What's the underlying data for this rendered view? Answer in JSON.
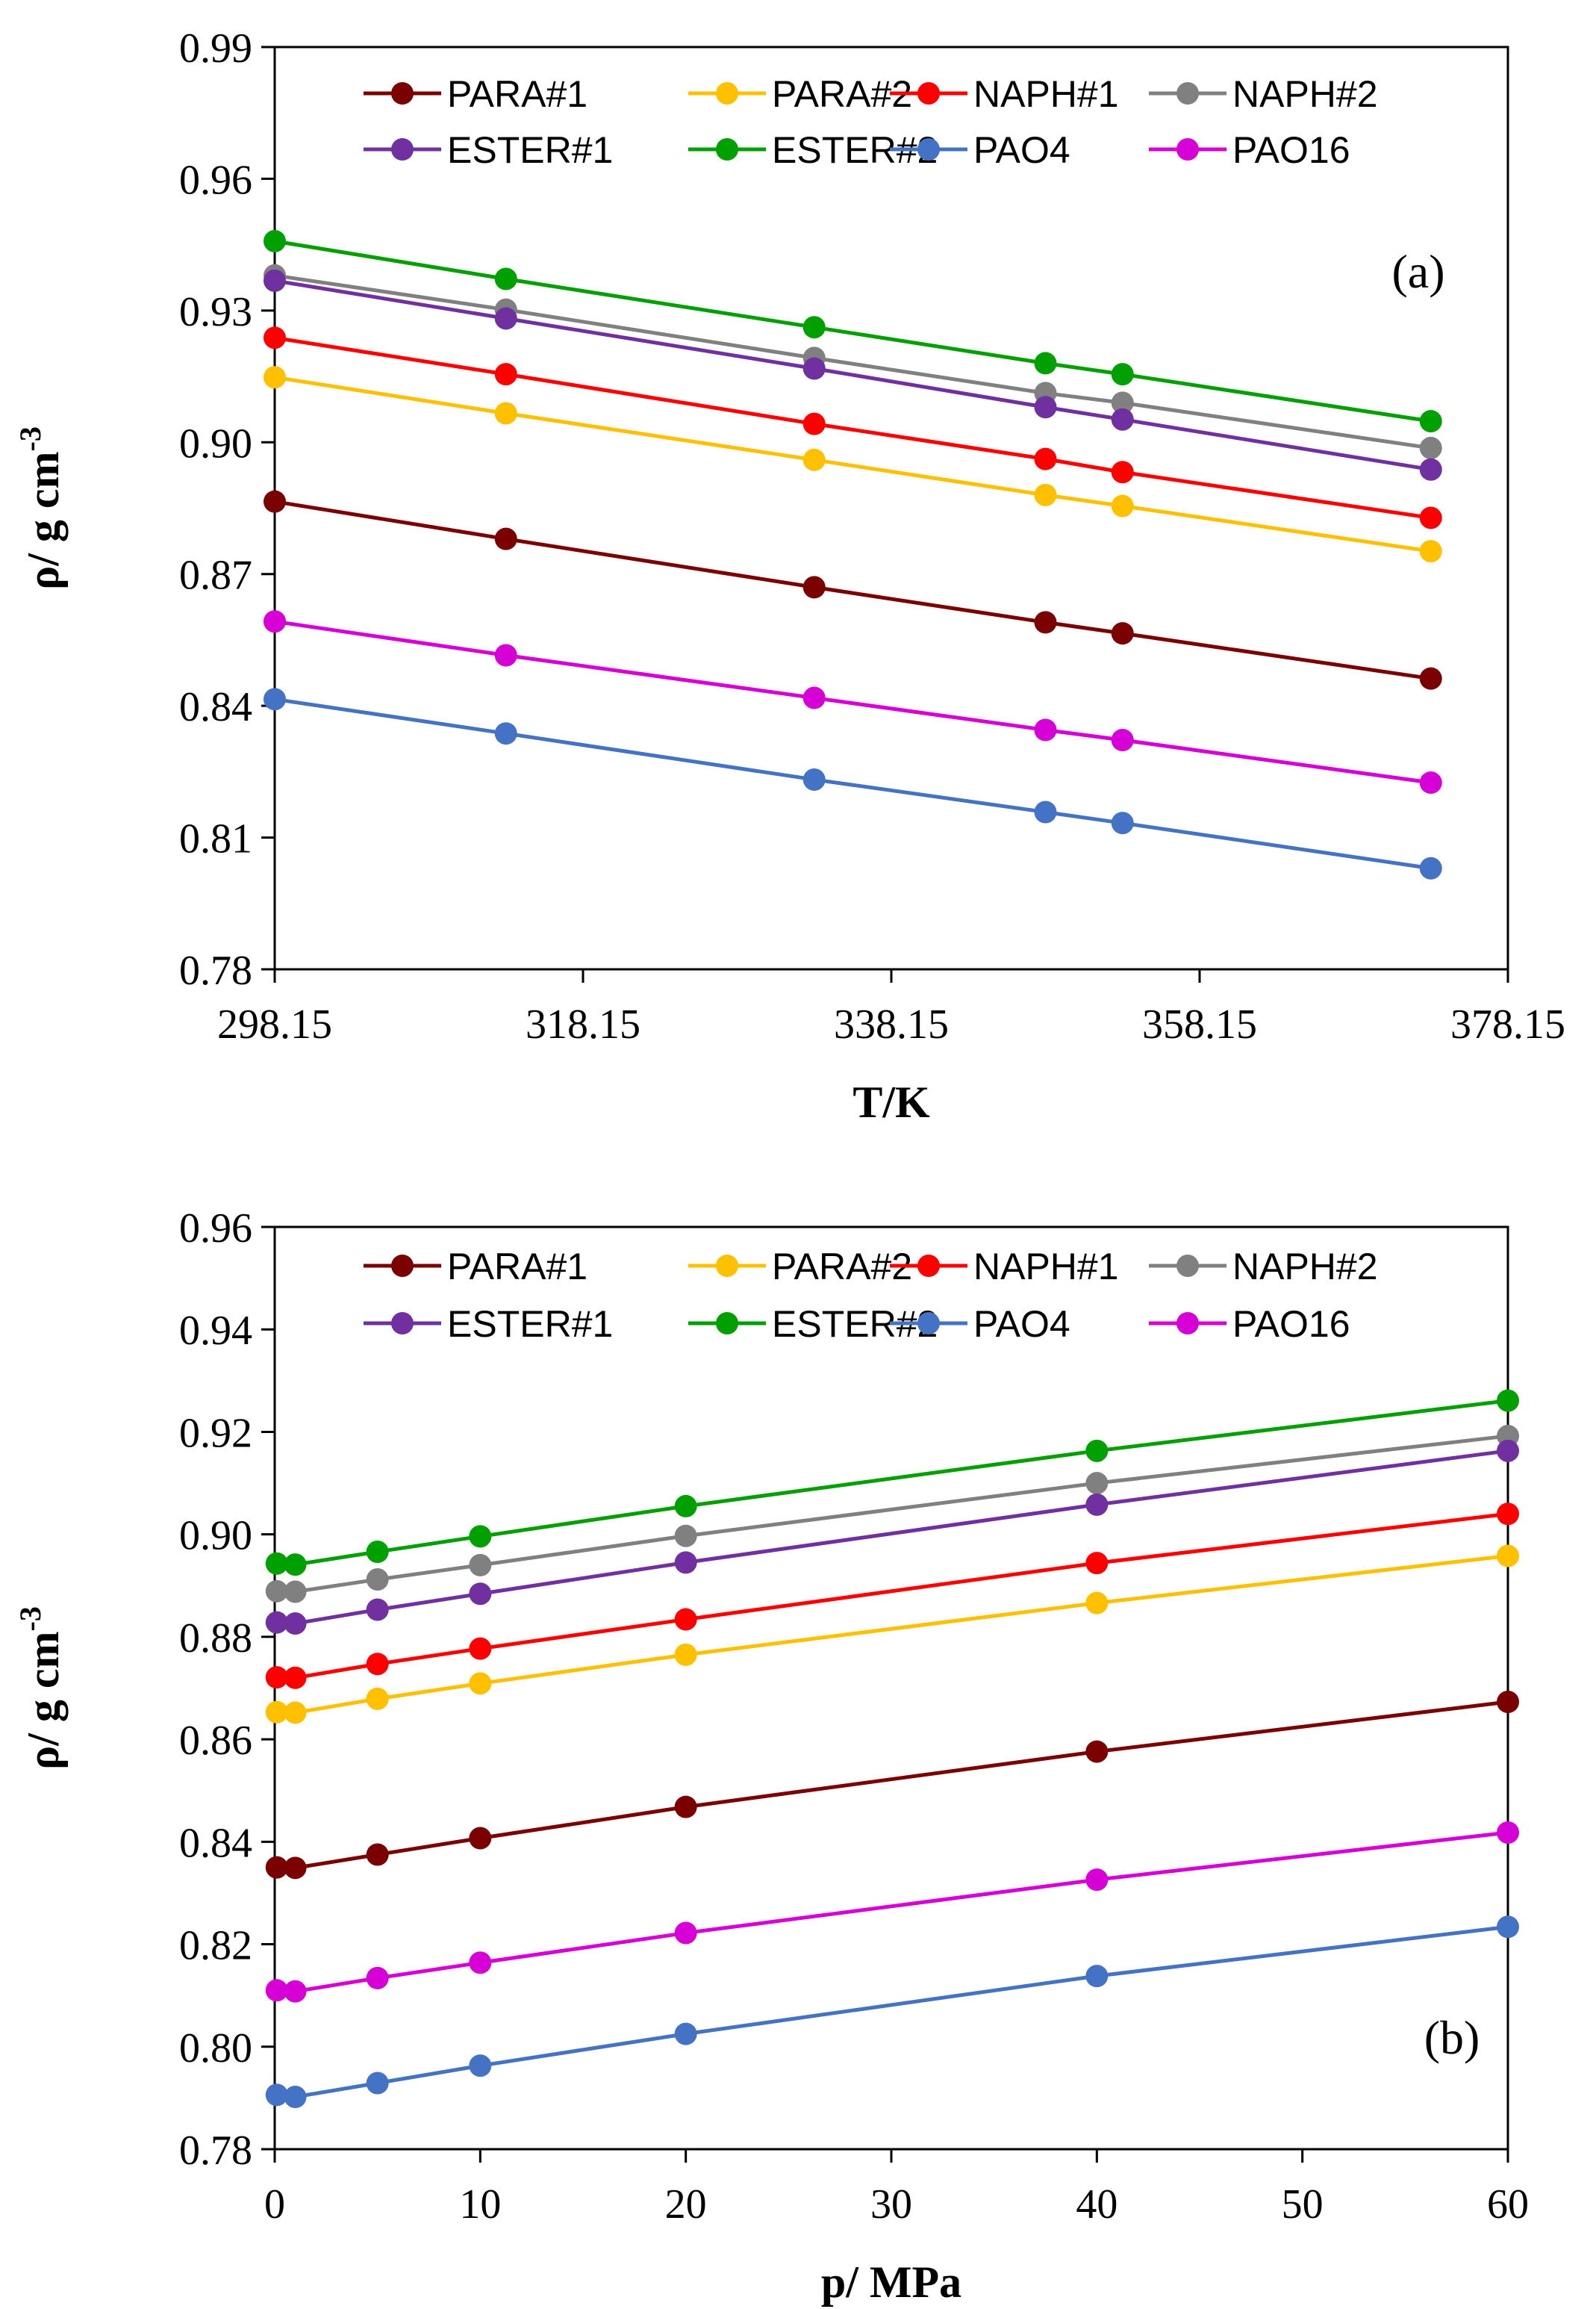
{
  "chart_data": [
    {
      "type": "line",
      "panel_label": "(a)",
      "xlabel": "T/K",
      "ylabel": "ρ/ g cm",
      "ylabel_superscript": "-3",
      "xlim": [
        298.15,
        378.15
      ],
      "ylim": [
        0.78,
        0.99
      ],
      "xticks": [
        298.15,
        318.15,
        338.15,
        358.15,
        378.15
      ],
      "xtick_labels": [
        "298.15",
        "318.15",
        "338.15",
        "358.15",
        "378.15"
      ],
      "yticks": [
        0.78,
        0.81,
        0.84,
        0.87,
        0.9,
        0.93,
        0.96,
        0.99
      ],
      "ytick_labels": [
        "0.78",
        "0.81",
        "0.84",
        "0.87",
        "0.90",
        "0.93",
        "0.96",
        "0.99"
      ],
      "grid": false,
      "legend_position": "top",
      "x": [
        298.15,
        313.15,
        333.15,
        348.15,
        353.15,
        373.15
      ],
      "series": [
        {
          "name": "PARA#1",
          "color": "#7B0000",
          "values": [
            0.8865,
            0.878,
            0.867,
            0.859,
            0.8565,
            0.8462
          ]
        },
        {
          "name": "PARA#2",
          "color": "#FFC000",
          "values": [
            0.9148,
            0.9066,
            0.896,
            0.888,
            0.8855,
            0.8752
          ]
        },
        {
          "name": "NAPH#1",
          "color": "#FF0000",
          "values": [
            0.9238,
            0.9155,
            0.9042,
            0.8962,
            0.8932,
            0.8828
          ]
        },
        {
          "name": "NAPH#2",
          "color": "#808080",
          "values": [
            0.938,
            0.9302,
            0.9192,
            0.9112,
            0.909,
            0.8987
          ]
        },
        {
          "name": "ESTER#1",
          "color": "#7030A0",
          "values": [
            0.9368,
            0.9282,
            0.9168,
            0.908,
            0.9052,
            0.8938
          ]
        },
        {
          "name": "ESTER#2",
          "color": "#00A000",
          "values": [
            0.9458,
            0.9372,
            0.9262,
            0.918,
            0.9155,
            0.9048
          ]
        },
        {
          "name": "PAO4",
          "color": "#4472C4",
          "values": [
            0.8415,
            0.8337,
            0.8232,
            0.8158,
            0.8133,
            0.803
          ]
        },
        {
          "name": "PAO16",
          "color": "#D600D6",
          "values": [
            0.8592,
            0.8515,
            0.8418,
            0.8345,
            0.8322,
            0.8225
          ]
        }
      ]
    },
    {
      "type": "line",
      "panel_label": "(b)",
      "xlabel": "p/ MPa",
      "ylabel": "ρ/ g cm",
      "ylabel_superscript": "-3",
      "xlim": [
        0,
        60
      ],
      "ylim": [
        0.78,
        0.96
      ],
      "xticks": [
        0,
        10,
        20,
        30,
        40,
        50,
        60
      ],
      "xtick_labels": [
        "0",
        "10",
        "20",
        "30",
        "40",
        "50",
        "60"
      ],
      "yticks": [
        0.78,
        0.8,
        0.82,
        0.84,
        0.86,
        0.88,
        0.9,
        0.92,
        0.94,
        0.96
      ],
      "ytick_labels": [
        "0.78",
        "0.80",
        "0.82",
        "0.84",
        "0.86",
        "0.88",
        "0.90",
        "0.92",
        "0.94",
        "0.96"
      ],
      "grid": false,
      "legend_position": "top",
      "x": [
        0.1,
        1,
        5,
        10,
        20,
        40,
        60
      ],
      "series": [
        {
          "name": "PARA#1",
          "color": "#7B0000",
          "values": [
            0.835,
            0.8349,
            0.8375,
            0.8407,
            0.8468,
            0.8576,
            0.8673
          ]
        },
        {
          "name": "PARA#2",
          "color": "#FFC000",
          "values": [
            0.8653,
            0.8652,
            0.8679,
            0.8709,
            0.8765,
            0.8866,
            0.8958
          ]
        },
        {
          "name": "NAPH#1",
          "color": "#FF0000",
          "values": [
            0.8721,
            0.872,
            0.8747,
            0.8777,
            0.8834,
            0.8944,
            0.904
          ]
        },
        {
          "name": "NAPH#2",
          "color": "#808080",
          "values": [
            0.8889,
            0.8888,
            0.8912,
            0.894,
            0.8997,
            0.91,
            0.9192
          ]
        },
        {
          "name": "ESTER#1",
          "color": "#7030A0",
          "values": [
            0.8828,
            0.8826,
            0.8853,
            0.8884,
            0.8945,
            0.9058,
            0.9163
          ]
        },
        {
          "name": "ESTER#2",
          "color": "#00A000",
          "values": [
            0.8943,
            0.8941,
            0.8966,
            0.8996,
            0.9055,
            0.9163,
            0.9261
          ]
        },
        {
          "name": "PAO4",
          "color": "#4472C4",
          "values": [
            0.7906,
            0.7902,
            0.7929,
            0.7963,
            0.8025,
            0.8138,
            0.8234
          ]
        },
        {
          "name": "PAO16",
          "color": "#D600D6",
          "values": [
            0.811,
            0.8108,
            0.8134,
            0.8164,
            0.8222,
            0.8326,
            0.8418
          ]
        }
      ]
    }
  ]
}
